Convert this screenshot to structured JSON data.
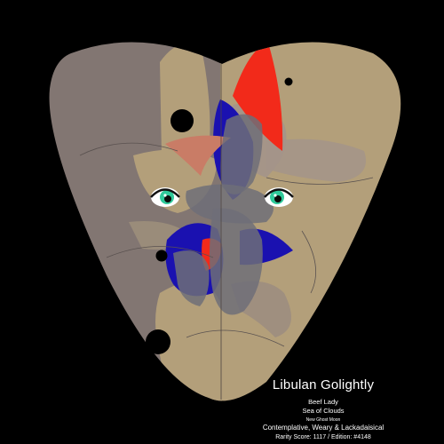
{
  "artwork": {
    "colors": {
      "background": "#000000",
      "mask_left": "#827672",
      "mask_right": "#b39f7a",
      "accent_red": "#f22a1a",
      "accent_blue": "#1a11b0",
      "accent_gray": "#6f6e78",
      "accent_salmon": "#c97c66",
      "eye_iris": "#2fc99a"
    }
  },
  "caption": {
    "name": "Libulan Golightly",
    "line1": "Beef Lady",
    "line2": "Sea of Clouds",
    "phase": "New Ghost Moon",
    "mood": "Contemplative, Weary & Lackadaisical",
    "rarity": "Rarity Score: 1117 / Edition: #4148"
  }
}
